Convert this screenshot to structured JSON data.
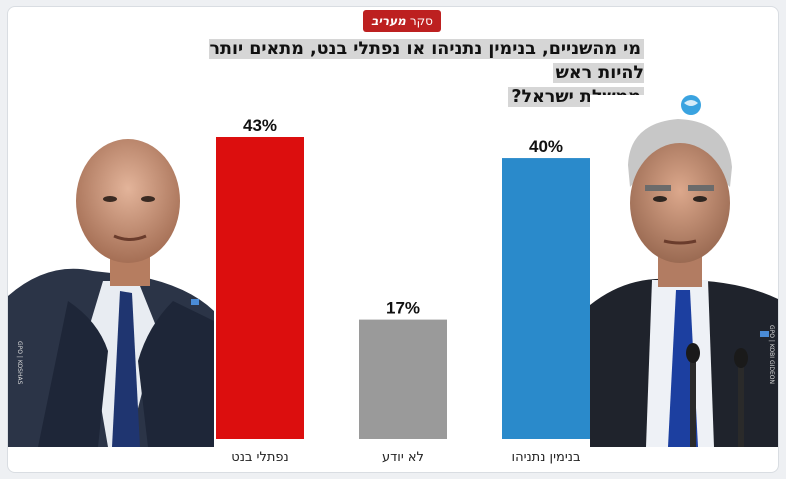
{
  "badge": {
    "poll_word": "סקר",
    "brand": "מעריב"
  },
  "title_lines": [
    "מי מהשניים, בנימין נתניהו או נפתלי בנט, מתאים יותר להיות ראש",
    "ממשלת ישראל?"
  ],
  "credits": {
    "left": "GPO | KOSHAS",
    "right": "GPO | KOBI GIDEON"
  },
  "colors": {
    "bennett": "#dc0e0e",
    "dont_know": "#9a9a9a",
    "netanyahu": "#2a8acb",
    "badge": "#bd2020"
  },
  "chart_data": {
    "type": "bar",
    "title": "מי מהשניים, בנימין נתניהו או נפתלי בנט, מתאים יותר להיות ראש ממשלת ישראל?",
    "categories": [
      "נפתלי בנט",
      "לא יודע",
      "בנימין נתניהו"
    ],
    "values": [
      43,
      17,
      40
    ],
    "labels": [
      "43%",
      "17%",
      "40%"
    ],
    "ylim": [
      0,
      43
    ],
    "grid": false
  }
}
